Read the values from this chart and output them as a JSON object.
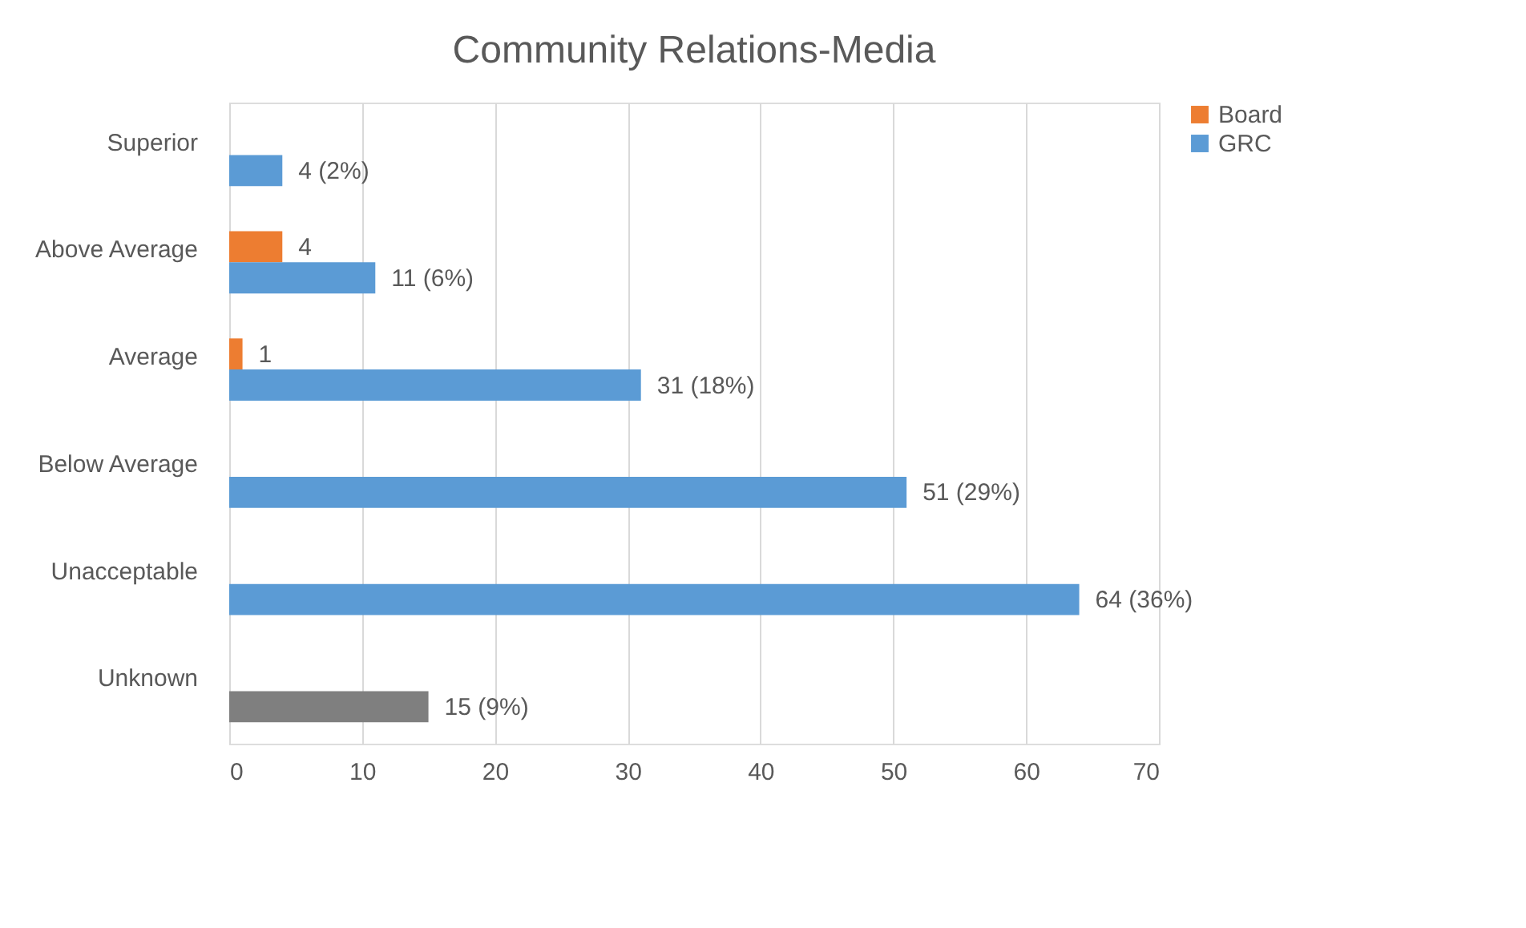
{
  "chart_data": {
    "type": "bar",
    "orientation": "horizontal",
    "title": "Community Relations-Media",
    "categories": [
      "Superior",
      "Above Average",
      "Average",
      "Below Average",
      "Unacceptable",
      "Unknown"
    ],
    "series": [
      {
        "name": "Board",
        "color": "#ed7d31",
        "values": [
          null,
          4,
          1,
          null,
          null,
          null
        ],
        "value_labels": [
          null,
          "4",
          "1",
          null,
          null,
          null
        ]
      },
      {
        "name": "GRC",
        "color": "#5b9bd5",
        "colors": [
          "#5b9bd5",
          "#5b9bd5",
          "#5b9bd5",
          "#5b9bd5",
          "#5b9bd5",
          "#7f7f7f"
        ],
        "values": [
          4,
          11,
          31,
          51,
          64,
          15
        ],
        "value_labels": [
          "4 (2%)",
          "11 (6%)",
          "31 (18%)",
          "51 (29%)",
          "64 (36%)",
          "15 (9%)"
        ]
      }
    ],
    "xlim": [
      0,
      70
    ],
    "xticks": [
      0,
      10,
      20,
      30,
      40,
      50,
      60,
      70
    ],
    "grid": "x",
    "legend": "right"
  }
}
